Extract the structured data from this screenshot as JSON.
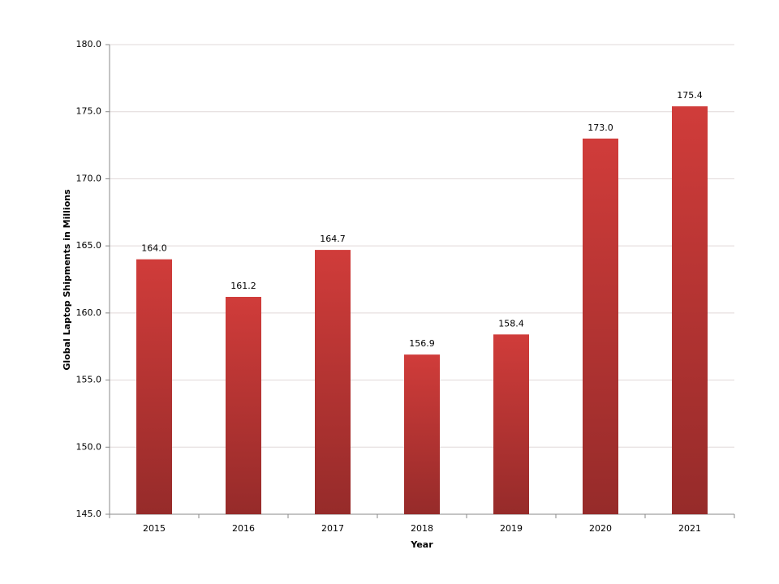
{
  "chart_data": {
    "type": "bar",
    "x_label": "Year",
    "y_label": "Global Laptop Shipments in Millions",
    "categories": [
      "2015",
      "2016",
      "2017",
      "2018",
      "2019",
      "2020",
      "2021"
    ],
    "values": [
      164.0,
      161.2,
      164.7,
      156.9,
      158.4,
      173.0,
      175.4
    ],
    "value_labels": [
      "164.0",
      "161.2",
      "164.7",
      "156.9",
      "158.4",
      "173.0",
      "175.4"
    ],
    "color": "#d03c3a",
    "ylim": [
      145,
      180
    ],
    "yticks": [
      {
        "value": 145,
        "label": "145.0"
      },
      {
        "value": 150,
        "label": "150.0"
      },
      {
        "value": 155,
        "label": "155.0"
      },
      {
        "value": 160,
        "label": "160.0"
      },
      {
        "value": 165,
        "label": "165.0"
      },
      {
        "value": 170,
        "label": "170.0"
      },
      {
        "value": 175,
        "label": "175.0"
      },
      {
        "value": 180,
        "label": "180.0"
      }
    ],
    "grid": true
  }
}
